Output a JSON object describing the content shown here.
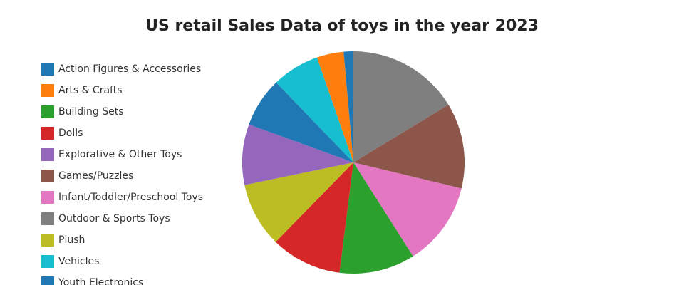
{
  "chart_data": {
    "type": "pie",
    "title": "US retail Sales Data of toys in the year 2023",
    "categories": [
      "Action Figures & Accessories",
      "Arts & Crafts",
      "Building Sets",
      "Dolls",
      "Explorative & Other Toys",
      "Games/Puzzles",
      "Infant/Toddler/Preschool Toys",
      "Outdoor & Sports Toys",
      "Plush",
      "Vehicles",
      "Youth Electronics"
    ],
    "values": [
      7.2,
      3.9,
      11.0,
      10.3,
      8.8,
      12.4,
      12.2,
      16.3,
      9.4,
      6.9,
      1.4
    ],
    "colors": [
      "#1f77b4",
      "#ff7f0e",
      "#2ca02c",
      "#d62728",
      "#9467bd",
      "#8c564b",
      "#e377c2",
      "#7f7f7f",
      "#bcbd22",
      "#17becf",
      "#1f77b4"
    ],
    "legend": "left"
  }
}
